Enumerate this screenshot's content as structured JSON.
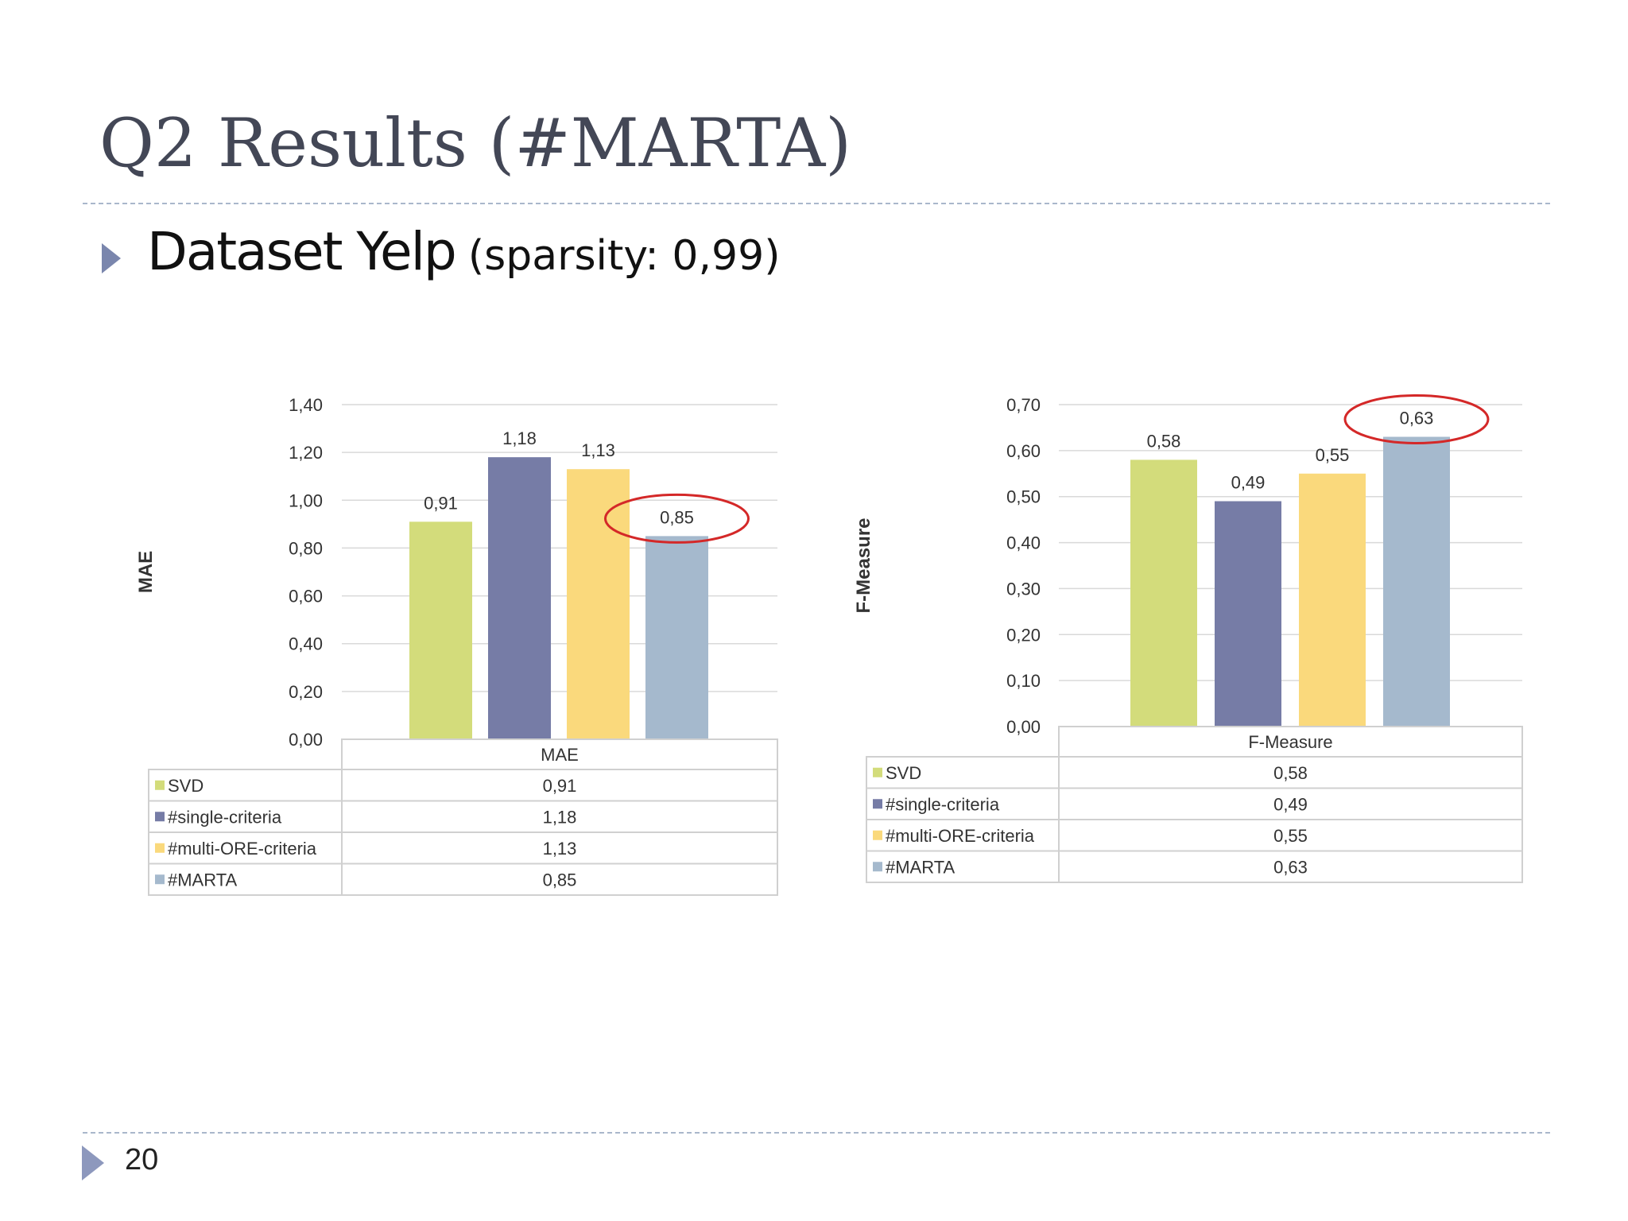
{
  "slide": {
    "title": "Q2 Results (#MARTA)",
    "bullet_main": "Dataset Yelp",
    "bullet_paren": "(sparsity: 0,99)",
    "page_number": "20"
  },
  "colors": {
    "svd": "#d3dc7b",
    "single": "#767ca6",
    "multi": "#fad97c",
    "marta": "#a5b9cd",
    "highlight_circle": "#d42828",
    "text": "#434756"
  },
  "chart_data": [
    {
      "type": "bar",
      "ylabel": "MAE",
      "category": "MAE",
      "ylim": [
        0,
        1.4
      ],
      "yticks": [
        "0,00",
        "0,20",
        "0,40",
        "0,60",
        "0,80",
        "1,00",
        "1,20",
        "1,40"
      ],
      "series": [
        {
          "name": "SVD",
          "value": 0.91,
          "label": "0,91",
          "color": "#d3dc7b"
        },
        {
          "name": "#single-criteria",
          "value": 1.18,
          "label": "1,18",
          "color": "#767ca6"
        },
        {
          "name": "#multi-ORE-criteria",
          "value": 1.13,
          "label": "1,13",
          "color": "#fad97c"
        },
        {
          "name": "#MARTA",
          "value": 0.85,
          "label": "0,85",
          "color": "#a5b9cd"
        }
      ],
      "highlighted_series": "#MARTA",
      "grid": true,
      "legend": "data table below chart"
    },
    {
      "type": "bar",
      "ylabel": "F-Measure",
      "category": "F-Measure",
      "ylim": [
        0,
        0.7
      ],
      "yticks": [
        "0,00",
        "0,10",
        "0,20",
        "0,30",
        "0,40",
        "0,50",
        "0,60",
        "0,70"
      ],
      "series": [
        {
          "name": "SVD",
          "value": 0.58,
          "label": "0,58",
          "color": "#d3dc7b"
        },
        {
          "name": "#single-criteria",
          "value": 0.49,
          "label": "0,49",
          "color": "#767ca6"
        },
        {
          "name": "#multi-ORE-criteria",
          "value": 0.55,
          "label": "0,55",
          "color": "#fad97c"
        },
        {
          "name": "#MARTA",
          "value": 0.63,
          "label": "0,63",
          "color": "#a5b9cd"
        }
      ],
      "highlighted_series": "#MARTA",
      "grid": true,
      "legend": "data table below chart"
    }
  ]
}
